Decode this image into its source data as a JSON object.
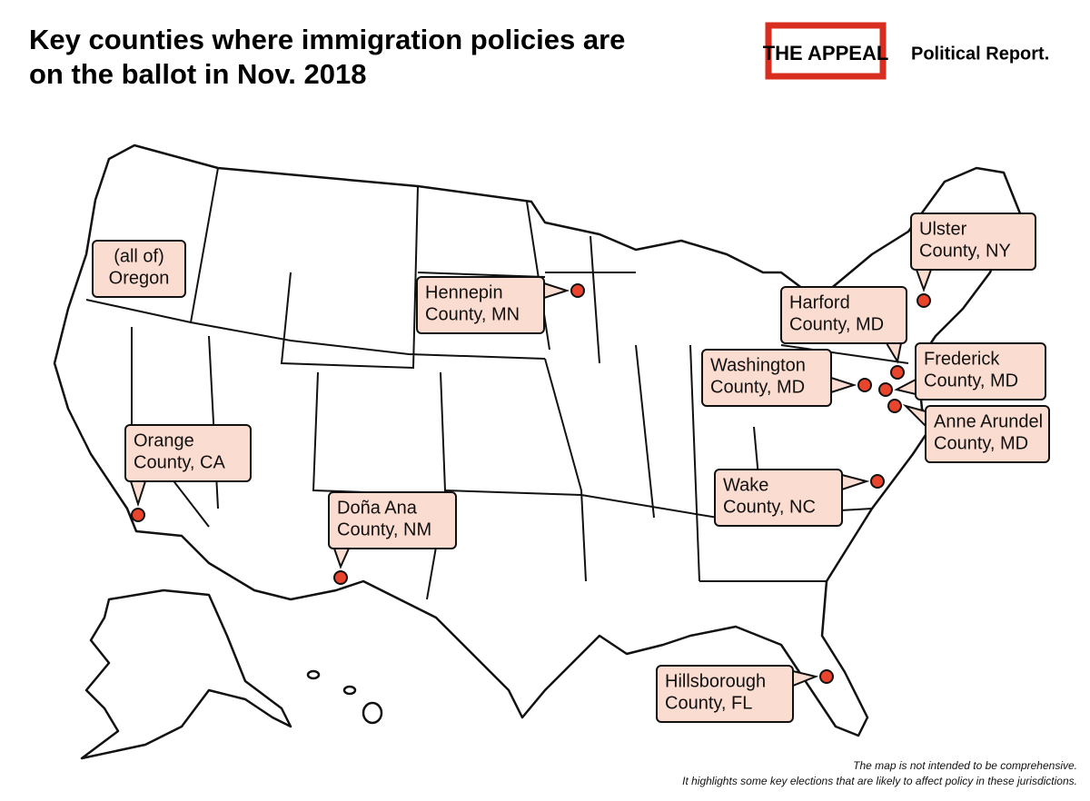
{
  "header": {
    "title_lines": [
      "Key counties where immigration policies are",
      "on the ballot in Nov. 2018"
    ],
    "logo": {
      "brand": "THE APPEAL",
      "section": "Political Report."
    }
  },
  "callouts": [
    {
      "lines": [
        "(all of)",
        "Oregon"
      ]
    },
    {
      "lines": [
        "Hennepin",
        "County, MN"
      ]
    },
    {
      "lines": [
        "Ulster",
        "County, NY"
      ]
    },
    {
      "lines": [
        "Harford",
        "County, MD"
      ]
    },
    {
      "lines": [
        "Washington",
        "County, MD"
      ]
    },
    {
      "lines": [
        "Frederick",
        "County, MD"
      ]
    },
    {
      "lines": [
        "Anne Arundel",
        "County, MD"
      ]
    },
    {
      "lines": [
        "Orange",
        "County, CA"
      ]
    },
    {
      "lines": [
        "Doña Ana",
        "County, NM"
      ]
    },
    {
      "lines": [
        "Wake",
        "County, NC"
      ]
    },
    {
      "lines": [
        "Hillsborough",
        "County, FL"
      ]
    }
  ],
  "footnote": [
    "The map is not intended to be comprehensive.",
    "It highlights some key elections that are likely to affect policy in these jurisdictions."
  ]
}
